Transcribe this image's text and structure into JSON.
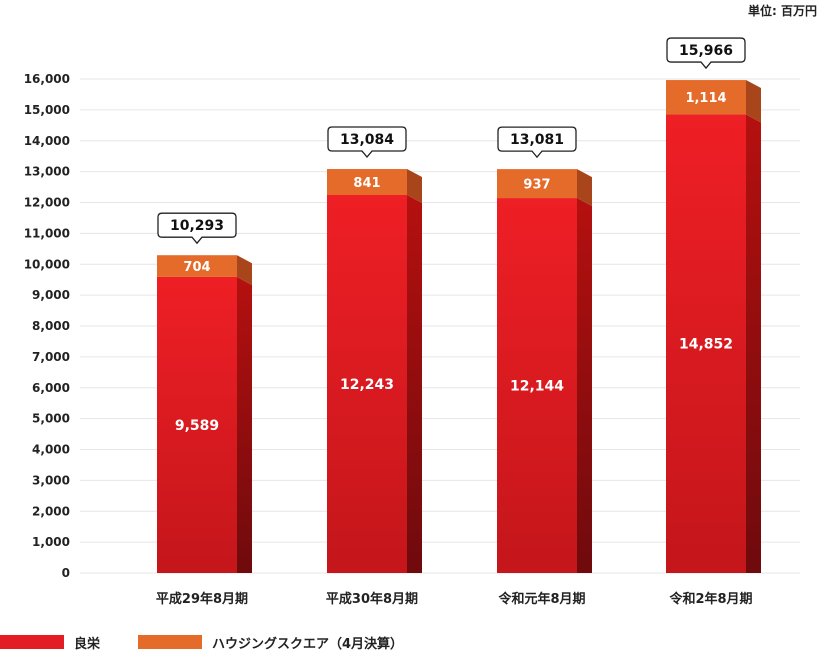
{
  "unit_label": "単位: 百万円",
  "colors": {
    "ryoei_front": "#e31d23",
    "ryoei_side": "#8e0c10",
    "housing_front": "#e56b2a",
    "housing_side": "#a8451a",
    "grid": "#e6e6e6",
    "axis_text": "#222222"
  },
  "legend": [
    {
      "label": "良栄",
      "color": "#e31d23"
    },
    {
      "label": "ハウジングスクエア（4月決算）",
      "color": "#e56b2a"
    }
  ],
  "chart_data": {
    "type": "bar",
    "stacked": true,
    "categories": [
      "平成29年8月期",
      "平成30年8月期",
      "令和元年8月期",
      "令和2年8月期"
    ],
    "series": [
      {
        "name": "良栄",
        "values": [
          9589,
          12243,
          12144,
          14852
        ],
        "labels": [
          "9,589",
          "12,243",
          "12,144",
          "14,852"
        ]
      },
      {
        "name": "ハウジングスクエア（4月決算）",
        "values": [
          704,
          841,
          937,
          1114
        ],
        "labels": [
          "704",
          "841",
          "937",
          "1,114"
        ]
      }
    ],
    "totals": [
      10293,
      13084,
      13081,
      15966
    ],
    "total_labels": [
      "10,293",
      "13,084",
      "13,081",
      "15,966"
    ],
    "ylim": [
      0,
      16000
    ],
    "yticks": [
      0,
      1000,
      2000,
      3000,
      4000,
      5000,
      6000,
      7000,
      8000,
      9000,
      10000,
      11000,
      12000,
      13000,
      14000,
      15000,
      16000
    ],
    "ytick_labels": [
      "0",
      "1,000",
      "2,000",
      "3,000",
      "4,000",
      "5,000",
      "6,000",
      "7,000",
      "8,000",
      "9,000",
      "10,000",
      "11,000",
      "12,000",
      "13,000",
      "14,000",
      "15,000",
      "16,000"
    ],
    "grid": true,
    "legend_position": "bottom-left"
  }
}
